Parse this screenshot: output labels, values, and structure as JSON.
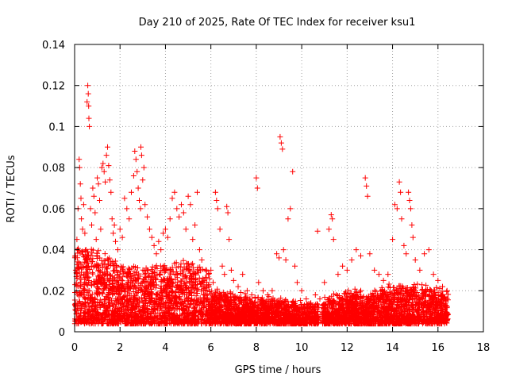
{
  "chart_data": {
    "type": "scatter",
    "title": "Day 210 of 2025, Rate Of TEC Index for receiver ksu1",
    "xlabel": "GPS time / hours",
    "ylabel": "ROTI / TECUs",
    "xlim": [
      0,
      18
    ],
    "ylim": [
      0,
      0.14
    ],
    "x_ticks": [
      0,
      2,
      4,
      6,
      8,
      10,
      12,
      14,
      16,
      18
    ],
    "y_ticks": [
      0,
      0.02,
      0.04,
      0.06,
      0.08,
      0.1,
      0.12,
      0.14
    ],
    "x_tick_labels": [
      "0",
      "2",
      "4",
      "6",
      "8",
      "10",
      "12",
      "14",
      "16",
      "18"
    ],
    "y_tick_labels": [
      "0",
      "0.02",
      "0.04",
      "0.06",
      "0.08",
      "0.1",
      "0.12",
      "0.14"
    ],
    "grid": true,
    "marker": "+",
    "marker_color": "#ff0000",
    "series": [
      {
        "name": "ROTI",
        "points": [
          [
            0.05,
            0.03
          ],
          [
            0.1,
            0.045
          ],
          [
            0.15,
            0.06
          ],
          [
            0.2,
            0.084
          ],
          [
            0.22,
            0.08
          ],
          [
            0.25,
            0.072
          ],
          [
            0.28,
            0.065
          ],
          [
            0.3,
            0.055
          ],
          [
            0.35,
            0.05
          ],
          [
            0.4,
            0.062
          ],
          [
            0.45,
            0.048
          ],
          [
            0.5,
            0.04
          ],
          [
            0.55,
            0.112
          ],
          [
            0.58,
            0.12
          ],
          [
            0.6,
            0.116
          ],
          [
            0.62,
            0.11
          ],
          [
            0.63,
            0.104
          ],
          [
            0.65,
            0.1
          ],
          [
            0.7,
            0.06
          ],
          [
            0.75,
            0.052
          ],
          [
            0.8,
            0.07
          ],
          [
            0.85,
            0.066
          ],
          [
            0.9,
            0.058
          ],
          [
            0.95,
            0.045
          ],
          [
            1.0,
            0.075
          ],
          [
            1.05,
            0.072
          ],
          [
            1.1,
            0.064
          ],
          [
            1.15,
            0.05
          ],
          [
            1.2,
            0.08
          ],
          [
            1.25,
            0.082
          ],
          [
            1.3,
            0.078
          ],
          [
            1.35,
            0.073
          ],
          [
            1.4,
            0.086
          ],
          [
            1.45,
            0.09
          ],
          [
            1.5,
            0.081
          ],
          [
            1.55,
            0.074
          ],
          [
            1.6,
            0.068
          ],
          [
            1.65,
            0.055
          ],
          [
            1.7,
            0.048
          ],
          [
            1.75,
            0.052
          ],
          [
            1.8,
            0.044
          ],
          [
            1.9,
            0.04
          ],
          [
            2.0,
            0.05
          ],
          [
            2.1,
            0.046
          ],
          [
            2.2,
            0.065
          ],
          [
            2.3,
            0.06
          ],
          [
            2.4,
            0.055
          ],
          [
            2.5,
            0.068
          ],
          [
            2.6,
            0.076
          ],
          [
            2.65,
            0.088
          ],
          [
            2.7,
            0.084
          ],
          [
            2.75,
            0.078
          ],
          [
            2.8,
            0.07
          ],
          [
            2.85,
            0.064
          ],
          [
            2.9,
            0.06
          ],
          [
            2.92,
            0.09
          ],
          [
            2.95,
            0.086
          ],
          [
            3.0,
            0.074
          ],
          [
            3.05,
            0.08
          ],
          [
            3.1,
            0.062
          ],
          [
            3.2,
            0.056
          ],
          [
            3.3,
            0.05
          ],
          [
            3.4,
            0.046
          ],
          [
            3.5,
            0.042
          ],
          [
            3.6,
            0.038
          ],
          [
            3.7,
            0.044
          ],
          [
            3.8,
            0.04
          ],
          [
            3.9,
            0.048
          ],
          [
            4.0,
            0.05
          ],
          [
            4.1,
            0.046
          ],
          [
            4.2,
            0.055
          ],
          [
            4.3,
            0.065
          ],
          [
            4.4,
            0.068
          ],
          [
            4.5,
            0.06
          ],
          [
            4.6,
            0.056
          ],
          [
            4.7,
            0.062
          ],
          [
            4.8,
            0.058
          ],
          [
            4.9,
            0.05
          ],
          [
            5.0,
            0.066
          ],
          [
            5.1,
            0.062
          ],
          [
            5.2,
            0.045
          ],
          [
            5.3,
            0.052
          ],
          [
            5.4,
            0.068
          ],
          [
            5.5,
            0.04
          ],
          [
            5.6,
            0.035
          ],
          [
            5.7,
            0.025
          ],
          [
            5.8,
            0.03
          ],
          [
            5.9,
            0.028
          ],
          [
            6.0,
            0.03
          ],
          [
            6.1,
            0.024
          ],
          [
            6.2,
            0.068
          ],
          [
            6.25,
            0.064
          ],
          [
            6.3,
            0.06
          ],
          [
            6.4,
            0.05
          ],
          [
            6.5,
            0.032
          ],
          [
            6.6,
            0.028
          ],
          [
            6.7,
            0.061
          ],
          [
            6.75,
            0.058
          ],
          [
            6.8,
            0.045
          ],
          [
            6.9,
            0.03
          ],
          [
            7.0,
            0.025
          ],
          [
            7.2,
            0.022
          ],
          [
            7.4,
            0.028
          ],
          [
            7.6,
            0.02
          ],
          [
            7.8,
            0.018
          ],
          [
            8.0,
            0.075
          ],
          [
            8.05,
            0.07
          ],
          [
            8.1,
            0.024
          ],
          [
            8.3,
            0.02
          ],
          [
            8.5,
            0.018
          ],
          [
            8.7,
            0.02
          ],
          [
            8.9,
            0.038
          ],
          [
            9.0,
            0.036
          ],
          [
            9.05,
            0.095
          ],
          [
            9.1,
            0.092
          ],
          [
            9.15,
            0.089
          ],
          [
            9.2,
            0.04
          ],
          [
            9.3,
            0.035
          ],
          [
            9.4,
            0.055
          ],
          [
            9.5,
            0.06
          ],
          [
            9.6,
            0.078
          ],
          [
            9.7,
            0.032
          ],
          [
            9.8,
            0.024
          ],
          [
            10.0,
            0.02
          ],
          [
            10.2,
            0.016
          ],
          [
            10.4,
            0.014
          ],
          [
            10.6,
            0.018
          ],
          [
            10.7,
            0.049
          ],
          [
            10.8,
            0.016
          ],
          [
            11.0,
            0.024
          ],
          [
            11.2,
            0.05
          ],
          [
            11.3,
            0.057
          ],
          [
            11.35,
            0.055
          ],
          [
            11.4,
            0.045
          ],
          [
            11.6,
            0.028
          ],
          [
            11.8,
            0.032
          ],
          [
            12.0,
            0.03
          ],
          [
            12.2,
            0.035
          ],
          [
            12.4,
            0.04
          ],
          [
            12.6,
            0.037
          ],
          [
            12.8,
            0.075
          ],
          [
            12.85,
            0.071
          ],
          [
            12.9,
            0.066
          ],
          [
            13.0,
            0.038
          ],
          [
            13.2,
            0.03
          ],
          [
            13.4,
            0.028
          ],
          [
            13.6,
            0.025
          ],
          [
            13.8,
            0.028
          ],
          [
            14.0,
            0.045
          ],
          [
            14.1,
            0.062
          ],
          [
            14.2,
            0.06
          ],
          [
            14.3,
            0.073
          ],
          [
            14.35,
            0.068
          ],
          [
            14.4,
            0.055
          ],
          [
            14.5,
            0.042
          ],
          [
            14.6,
            0.038
          ],
          [
            14.7,
            0.068
          ],
          [
            14.75,
            0.064
          ],
          [
            14.8,
            0.06
          ],
          [
            14.85,
            0.052
          ],
          [
            14.9,
            0.046
          ],
          [
            15.0,
            0.035
          ],
          [
            15.2,
            0.03
          ],
          [
            15.4,
            0.038
          ],
          [
            15.6,
            0.04
          ],
          [
            15.8,
            0.028
          ],
          [
            16.0,
            0.025
          ],
          [
            16.2,
            0.022
          ],
          [
            16.4,
            0.02
          ]
        ]
      }
    ],
    "bulk_band": {
      "description": "dense cloud of points between the lower and upper bounds across the time span",
      "x_range": [
        0.0,
        16.45
      ],
      "gap_x_range": [
        10.75,
        10.9
      ],
      "y_lower": 0.004,
      "y_upper_profile": [
        [
          0,
          0.04
        ],
        [
          1,
          0.04
        ],
        [
          2,
          0.032
        ],
        [
          3,
          0.03
        ],
        [
          4,
          0.032
        ],
        [
          5,
          0.034
        ],
        [
          5.9,
          0.03
        ],
        [
          6,
          0.02
        ],
        [
          8,
          0.016
        ],
        [
          10,
          0.014
        ],
        [
          10.8,
          0.012
        ],
        [
          11,
          0.016
        ],
        [
          12,
          0.02
        ],
        [
          13,
          0.018
        ],
        [
          14,
          0.022
        ],
        [
          15,
          0.022
        ],
        [
          16,
          0.02
        ],
        [
          16.45,
          0.02
        ]
      ],
      "point_count": 5200,
      "seed": 210
    }
  }
}
